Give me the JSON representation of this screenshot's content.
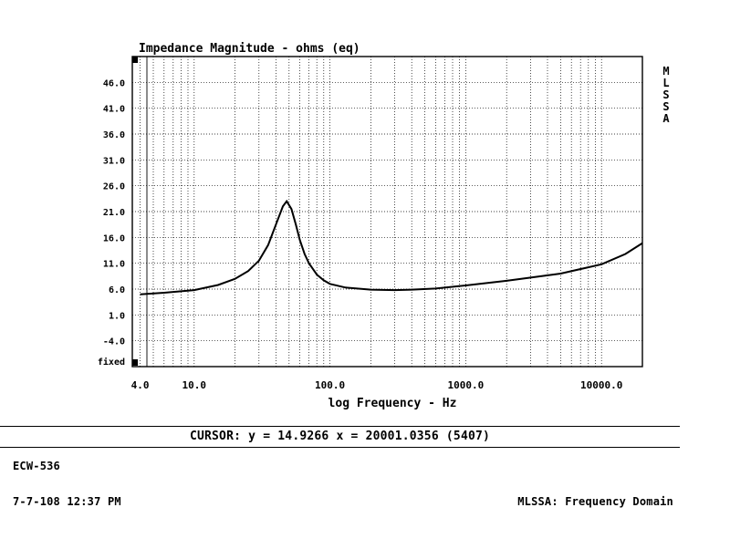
{
  "chart_data": {
    "type": "line",
    "title": "Impedance Magnitude - ohms (eq)",
    "xlabel": "log Frequency - Hz",
    "ylabel": "",
    "xscale": "log",
    "xlim": [
      3.5,
      20000
    ],
    "ylim": [
      -9,
      51
    ],
    "grid": true,
    "x_ticks": [
      4.0,
      10.0,
      100.0,
      1000.0,
      10000.0
    ],
    "x_tick_labels": [
      "4.0",
      "10.0",
      "100.0",
      "1000.0",
      "10000.0"
    ],
    "y_ticks": [
      46.0,
      41.0,
      36.0,
      31.0,
      26.0,
      21.0,
      16.0,
      11.0,
      6.0,
      1.0,
      -4.0
    ],
    "y_tick_labels": [
      "46.0",
      "41.0",
      "36.0",
      "31.0",
      "26.0",
      "21.0",
      "16.0",
      "11.0",
      "6.0",
      "1.0",
      "-4.0"
    ],
    "y_bottom_label": "fixed",
    "side_label": [
      "M",
      "L",
      "S",
      "S",
      "A"
    ],
    "series": [
      {
        "x": [
          4,
          6,
          10,
          15,
          20,
          25,
          30,
          35,
          40,
          45,
          48,
          52,
          56,
          60,
          65,
          70,
          80,
          90,
          100,
          130,
          200,
          300,
          400,
          600,
          1000,
          2000,
          5000,
          10000,
          15000,
          20000
        ],
        "y": [
          5.0,
          5.3,
          5.8,
          6.8,
          8.0,
          9.5,
          11.5,
          14.5,
          18.5,
          22.0,
          23.0,
          21.5,
          18.5,
          15.5,
          12.8,
          11.0,
          8.8,
          7.7,
          7.0,
          6.3,
          5.9,
          5.8,
          5.9,
          6.1,
          6.7,
          7.6,
          9.0,
          10.8,
          12.8,
          14.9
        ]
      }
    ]
  },
  "cursor_text": "CURSOR: y = 14.9266 x = 20001.0356 (5407)",
  "device_id": "ECW-536",
  "datetime": "7-7-108 12:37 PM",
  "mode": "MLSSA: Frequency Domain"
}
